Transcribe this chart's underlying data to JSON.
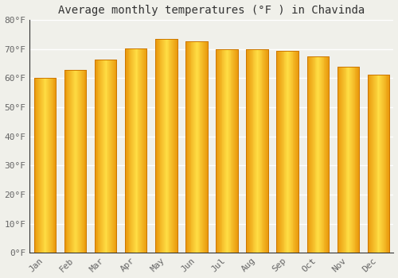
{
  "title": "Average monthly temperatures (°F ) in Chavinda",
  "months": [
    "Jan",
    "Feb",
    "Mar",
    "Apr",
    "May",
    "Jun",
    "Jul",
    "Aug",
    "Sep",
    "Oct",
    "Nov",
    "Dec"
  ],
  "values": [
    60.1,
    62.8,
    66.3,
    70.2,
    73.3,
    72.5,
    70.0,
    69.8,
    69.2,
    67.3,
    63.9,
    61.2
  ],
  "bar_color_light": "#FFCC44",
  "bar_color_mid": "#FFAA00",
  "bar_color_dark": "#E8860A",
  "bar_edge_color": "#CC7700",
  "background_color": "#f0f0ea",
  "plot_bg_color": "#f0f0ea",
  "grid_color": "#ffffff",
  "ylim": [
    0,
    80
  ],
  "yticks": [
    0,
    10,
    20,
    30,
    40,
    50,
    60,
    70,
    80
  ],
  "ylabel_suffix": "°F",
  "title_fontsize": 10,
  "tick_fontsize": 8,
  "font_family": "monospace",
  "tick_color": "#666666",
  "title_color": "#333333"
}
